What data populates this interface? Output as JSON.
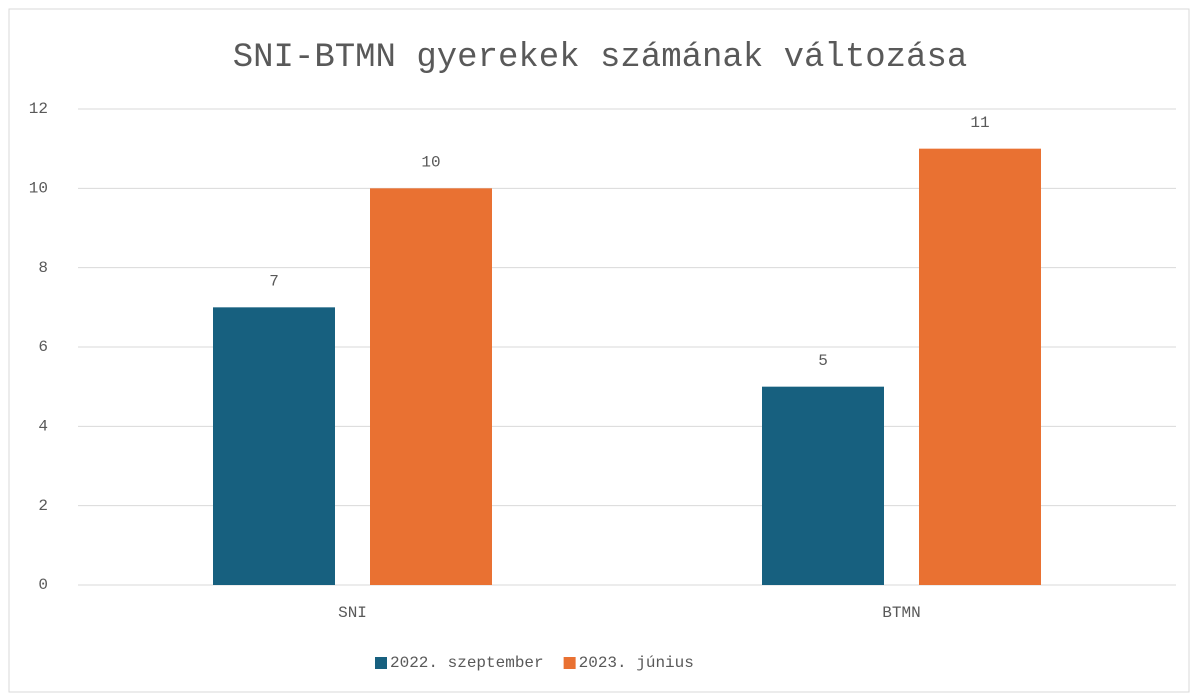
{
  "chart_data": {
    "type": "bar",
    "title": "SNI-BTMN gyerekek számának változása",
    "categories": [
      "SNI",
      "BTMN"
    ],
    "series": [
      {
        "name": "2022. szeptember",
        "color": "#17607f",
        "values": [
          7,
          5
        ]
      },
      {
        "name": "2023. június",
        "color": "#e97132",
        "values": [
          10,
          11
        ]
      }
    ],
    "ylim": [
      0,
      12
    ],
    "yticks": [
      0,
      2,
      4,
      6,
      8,
      10,
      12
    ],
    "grid": true,
    "legend": "bottom"
  }
}
